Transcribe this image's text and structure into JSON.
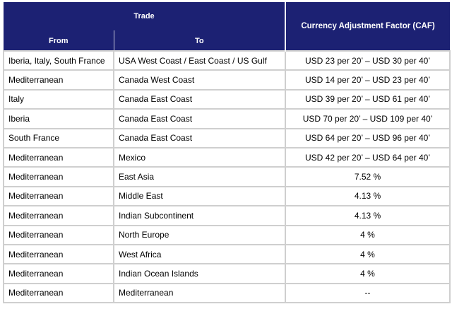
{
  "header": {
    "trade": "Trade",
    "from": "From",
    "to": "To",
    "caf": "Currency Adjustment Factor (CAF)"
  },
  "table": {
    "rows": [
      [
        "Iberia, Italy, South France",
        "USA West Coast / East Coast / US Gulf",
        "USD 23 per 20’ – USD 30 per 40’"
      ],
      [
        "Mediterranean",
        "Canada West Coast",
        "USD 14 per 20’ – USD 23 per 40’"
      ],
      [
        "Italy",
        "Canada East Coast",
        "USD 39 per 20’ – USD 61 per 40’"
      ],
      [
        "Iberia",
        "Canada East Coast",
        "USD 70 per 20’ – USD 109 per 40’"
      ],
      [
        "South France",
        "Canada East Coast",
        "USD 64 per 20’ – USD 96 per 40’"
      ],
      [
        "Mediterranean",
        "Mexico",
        "USD 42 per 20’ – USD 64 per 40’"
      ],
      [
        "Mediterranean",
        "East Asia",
        "7.52 %"
      ],
      [
        "Mediterranean",
        "Middle East",
        "4.13 %"
      ],
      [
        "Mediterranean",
        "Indian Subcontinent",
        "4.13 %"
      ],
      [
        "Mediterranean",
        "North Europe",
        "4 %"
      ],
      [
        "Mediterranean",
        "West Africa",
        "4 %"
      ],
      [
        "Mediterranean",
        "Indian Ocean Islands",
        "4 %"
      ],
      [
        "Mediterranean",
        "Mediterranean",
        "--"
      ]
    ]
  }
}
